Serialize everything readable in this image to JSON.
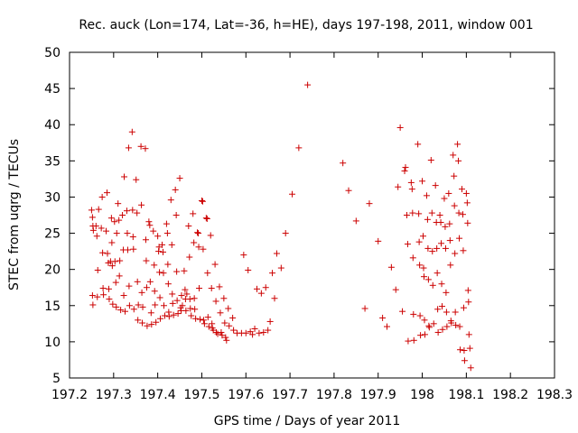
{
  "chart_data": {
    "type": "scatter",
    "title": "Rec. auck (Lon=174, Lat=-36, h=HE), days 197-198, 2011, window 001",
    "xlabel": "GPS time / Days of year 2011",
    "ylabel": "STEC from uqrg / TECUs",
    "xlim": [
      197.2,
      198.3
    ],
    "ylim": [
      5,
      50
    ],
    "x_ticks": [
      "197.2",
      "197.3",
      "197.4",
      "197.5",
      "197.6",
      "197.7",
      "197.8",
      "197.9",
      "198",
      "198.1",
      "198.2",
      "198.3"
    ],
    "y_ticks": [
      "5",
      "10",
      "15",
      "20",
      "25",
      "30",
      "35",
      "40",
      "45",
      "50"
    ],
    "marker": "plus",
    "color": "#cc0000",
    "series": [
      {
        "name": "STEC",
        "points": [
          [
            197.25,
            28.2
          ],
          [
            197.252,
            27.2
          ],
          [
            197.253,
            26.0
          ],
          [
            197.254,
            25.4
          ],
          [
            197.252,
            16.4
          ],
          [
            197.253,
            15.1
          ],
          [
            197.26,
            26.0
          ],
          [
            197.262,
            24.6
          ],
          [
            197.263,
            16.2
          ],
          [
            197.264,
            19.9
          ],
          [
            197.266,
            28.3
          ],
          [
            197.272,
            25.7
          ],
          [
            197.274,
            30.0
          ],
          [
            197.275,
            22.3
          ],
          [
            197.276,
            17.4
          ],
          [
            197.277,
            16.5
          ],
          [
            197.283,
            25.3
          ],
          [
            197.285,
            30.6
          ],
          [
            197.286,
            22.2
          ],
          [
            197.288,
            20.9
          ],
          [
            197.289,
            17.3
          ],
          [
            197.29,
            15.9
          ],
          [
            197.293,
            21.1
          ],
          [
            197.295,
            27.1
          ],
          [
            197.296,
            23.7
          ],
          [
            197.297,
            20.5
          ],
          [
            197.298,
            15.2
          ],
          [
            197.302,
            26.6
          ],
          [
            197.303,
            21.1
          ],
          [
            197.305,
            18.2
          ],
          [
            197.306,
            14.8
          ],
          [
            197.307,
            25.0
          ],
          [
            197.31,
            29.1
          ],
          [
            197.312,
            26.8
          ],
          [
            197.313,
            19.1
          ],
          [
            197.314,
            21.2
          ],
          [
            197.316,
            14.4
          ],
          [
            197.32,
            27.5
          ],
          [
            197.322,
            22.7
          ],
          [
            197.323,
            16.4
          ],
          [
            197.324,
            32.8
          ],
          [
            197.326,
            14.2
          ],
          [
            197.33,
            28.1
          ],
          [
            197.331,
            25.0
          ],
          [
            197.332,
            22.7
          ],
          [
            197.334,
            36.8
          ],
          [
            197.335,
            17.7
          ],
          [
            197.336,
            15.0
          ],
          [
            197.342,
            39.0
          ],
          [
            197.343,
            28.2
          ],
          [
            197.344,
            24.5
          ],
          [
            197.345,
            22.8
          ],
          [
            197.346,
            14.5
          ],
          [
            197.351,
            32.4
          ],
          [
            197.353,
            27.8
          ],
          [
            197.354,
            18.3
          ],
          [
            197.355,
            13.0
          ],
          [
            197.356,
            15.1
          ],
          [
            197.362,
            37.0
          ],
          [
            197.363,
            28.9
          ],
          [
            197.364,
            16.8
          ],
          [
            197.365,
            12.6
          ],
          [
            197.366,
            14.8
          ],
          [
            197.372,
            36.7
          ],
          [
            197.373,
            24.1
          ],
          [
            197.374,
            21.2
          ],
          [
            197.375,
            17.5
          ],
          [
            197.376,
            12.2
          ],
          [
            197.38,
            26.6
          ],
          [
            197.382,
            26.1
          ],
          [
            197.383,
            18.3
          ],
          [
            197.385,
            14.0
          ],
          [
            197.386,
            12.4
          ],
          [
            197.39,
            25.3
          ],
          [
            197.392,
            20.6
          ],
          [
            197.393,
            17.0
          ],
          [
            197.394,
            15.1
          ],
          [
            197.396,
            12.7
          ],
          [
            197.4,
            24.6
          ],
          [
            197.402,
            22.5
          ],
          [
            197.403,
            23.1
          ],
          [
            197.404,
            19.6
          ],
          [
            197.405,
            16.1
          ],
          [
            197.406,
            13.2
          ],
          [
            197.41,
            23.4
          ],
          [
            197.412,
            22.4
          ],
          [
            197.413,
            19.5
          ],
          [
            197.414,
            15.0
          ],
          [
            197.416,
            13.6
          ],
          [
            197.42,
            26.3
          ],
          [
            197.422,
            25.0
          ],
          [
            197.423,
            20.7
          ],
          [
            197.424,
            18.0
          ],
          [
            197.425,
            14.1
          ],
          [
            197.426,
            13.5
          ],
          [
            197.43,
            29.6
          ],
          [
            197.432,
            23.4
          ],
          [
            197.433,
            16.6
          ],
          [
            197.434,
            15.3
          ],
          [
            197.436,
            13.7
          ],
          [
            197.44,
            31.0
          ],
          [
            197.442,
            27.5
          ],
          [
            197.443,
            19.7
          ],
          [
            197.444,
            15.7
          ],
          [
            197.446,
            13.9
          ],
          [
            197.45,
            32.6
          ],
          [
            197.452,
            14.7
          ],
          [
            197.453,
            14.3
          ],
          [
            197.454,
            16.4
          ],
          [
            197.456,
            15.0
          ],
          [
            197.46,
            19.8
          ],
          [
            197.462,
            17.2
          ],
          [
            197.463,
            15.9
          ],
          [
            197.464,
            14.3
          ],
          [
            197.466,
            16.6
          ],
          [
            197.47,
            26.0
          ],
          [
            197.472,
            21.7
          ],
          [
            197.473,
            15.9
          ],
          [
            197.474,
            14.6
          ],
          [
            197.476,
            13.6
          ],
          [
            197.48,
            27.7
          ],
          [
            197.482,
            23.7
          ],
          [
            197.483,
            16.0
          ],
          [
            197.484,
            14.5
          ],
          [
            197.486,
            13.2
          ],
          [
            197.49,
            25.1
          ],
          [
            197.492,
            25.0
          ],
          [
            197.493,
            23.1
          ],
          [
            197.494,
            17.4
          ],
          [
            197.496,
            13.1
          ],
          [
            197.5,
            29.5
          ],
          [
            197.502,
            29.4
          ],
          [
            197.503,
            22.8
          ],
          [
            197.504,
            13.0
          ],
          [
            197.506,
            12.5
          ],
          [
            197.51,
            27.1
          ],
          [
            197.512,
            27.0
          ],
          [
            197.513,
            19.5
          ],
          [
            197.514,
            13.4
          ],
          [
            197.516,
            12.1
          ],
          [
            197.52,
            24.7
          ],
          [
            197.522,
            17.4
          ],
          [
            197.523,
            12.5
          ],
          [
            197.524,
            11.9
          ],
          [
            197.526,
            11.6
          ],
          [
            197.53,
            20.7
          ],
          [
            197.532,
            15.6
          ],
          [
            197.533,
            11.3
          ],
          [
            197.536,
            11.1
          ],
          [
            197.54,
            17.6
          ],
          [
            197.542,
            14.0
          ],
          [
            197.544,
            11.3
          ],
          [
            197.546,
            10.9
          ],
          [
            197.55,
            16.0
          ],
          [
            197.552,
            12.6
          ],
          [
            197.554,
            10.6
          ],
          [
            197.556,
            10.2
          ],
          [
            197.56,
            14.6
          ],
          [
            197.562,
            12.2
          ],
          [
            197.57,
            13.3
          ],
          [
            197.572,
            11.6
          ],
          [
            197.58,
            11.2
          ],
          [
            197.59,
            11.2
          ],
          [
            197.595,
            22.0
          ],
          [
            197.6,
            11.2
          ],
          [
            197.605,
            19.9
          ],
          [
            197.61,
            11.4
          ],
          [
            197.615,
            11.0
          ],
          [
            197.62,
            11.8
          ],
          [
            197.625,
            17.3
          ],
          [
            197.63,
            11.2
          ],
          [
            197.635,
            16.7
          ],
          [
            197.64,
            11.3
          ],
          [
            197.645,
            17.5
          ],
          [
            197.65,
            11.6
          ],
          [
            197.655,
            12.8
          ],
          [
            197.66,
            19.5
          ],
          [
            197.665,
            16.0
          ],
          [
            197.67,
            22.2
          ],
          [
            197.68,
            20.2
          ],
          [
            197.69,
            25.0
          ],
          [
            197.705,
            30.4
          ],
          [
            197.72,
            36.8
          ],
          [
            197.74,
            45.5
          ],
          [
            197.82,
            34.7
          ],
          [
            197.833,
            30.9
          ],
          [
            197.85,
            26.7
          ],
          [
            197.87,
            14.6
          ],
          [
            197.88,
            29.1
          ],
          [
            197.9,
            23.9
          ],
          [
            197.91,
            13.3
          ],
          [
            197.92,
            12.1
          ],
          [
            197.93,
            20.3
          ],
          [
            197.94,
            17.2
          ],
          [
            197.945,
            31.4
          ],
          [
            197.95,
            39.6
          ],
          [
            197.955,
            14.2
          ],
          [
            197.96,
            33.6
          ],
          [
            197.962,
            34.1
          ],
          [
            197.965,
            27.5
          ],
          [
            197.967,
            23.5
          ],
          [
            197.968,
            10.1
          ],
          [
            197.975,
            32.0
          ],
          [
            197.977,
            31.1
          ],
          [
            197.978,
            27.8
          ],
          [
            197.979,
            21.6
          ],
          [
            197.98,
            13.8
          ],
          [
            197.981,
            10.2
          ],
          [
            197.99,
            37.3
          ],
          [
            197.992,
            27.7
          ],
          [
            197.993,
            23.8
          ],
          [
            197.994,
            20.6
          ],
          [
            197.995,
            13.6
          ],
          [
            197.996,
            10.9
          ],
          [
            198.0,
            32.2
          ],
          [
            198.002,
            24.6
          ],
          [
            198.003,
            20.2
          ],
          [
            198.004,
            19.0
          ],
          [
            198.005,
            13.0
          ],
          [
            198.006,
            11.0
          ],
          [
            198.01,
            30.2
          ],
          [
            198.012,
            26.9
          ],
          [
            198.013,
            22.9
          ],
          [
            198.014,
            18.6
          ],
          [
            198.015,
            12.2
          ],
          [
            198.016,
            12.0
          ],
          [
            198.02,
            35.1
          ],
          [
            198.022,
            27.8
          ],
          [
            198.023,
            22.5
          ],
          [
            198.024,
            17.8
          ],
          [
            198.026,
            12.5
          ],
          [
            198.03,
            31.6
          ],
          [
            198.032,
            26.5
          ],
          [
            198.033,
            22.9
          ],
          [
            198.034,
            19.5
          ],
          [
            198.035,
            14.5
          ],
          [
            198.036,
            11.3
          ],
          [
            198.04,
            27.5
          ],
          [
            198.042,
            26.5
          ],
          [
            198.043,
            23.6
          ],
          [
            198.044,
            18.0
          ],
          [
            198.045,
            14.9
          ],
          [
            198.046,
            11.7
          ],
          [
            198.05,
            29.8
          ],
          [
            198.052,
            25.9
          ],
          [
            198.053,
            22.9
          ],
          [
            198.054,
            16.8
          ],
          [
            198.055,
            14.1
          ],
          [
            198.056,
            12.1
          ],
          [
            198.06,
            30.5
          ],
          [
            198.062,
            26.3
          ],
          [
            198.063,
            24.0
          ],
          [
            198.064,
            20.6
          ],
          [
            198.065,
            12.9
          ],
          [
            198.066,
            12.6
          ],
          [
            198.07,
            35.8
          ],
          [
            198.072,
            32.9
          ],
          [
            198.073,
            28.8
          ],
          [
            198.074,
            22.2
          ],
          [
            198.075,
            14.1
          ],
          [
            198.076,
            12.3
          ],
          [
            198.08,
            37.3
          ],
          [
            198.082,
            35.0
          ],
          [
            198.083,
            27.8
          ],
          [
            198.084,
            24.3
          ],
          [
            198.085,
            12.1
          ],
          [
            198.086,
            8.9
          ],
          [
            198.09,
            31.1
          ],
          [
            198.092,
            27.6
          ],
          [
            198.093,
            22.6
          ],
          [
            198.094,
            14.7
          ],
          [
            198.095,
            8.8
          ],
          [
            198.096,
            7.4
          ],
          [
            198.1,
            30.5
          ],
          [
            198.102,
            29.2
          ],
          [
            198.103,
            26.4
          ],
          [
            198.104,
            17.1
          ],
          [
            198.105,
            15.5
          ],
          [
            198.106,
            11.0
          ],
          [
            198.108,
            9.1
          ],
          [
            198.11,
            6.4
          ]
        ]
      }
    ]
  }
}
